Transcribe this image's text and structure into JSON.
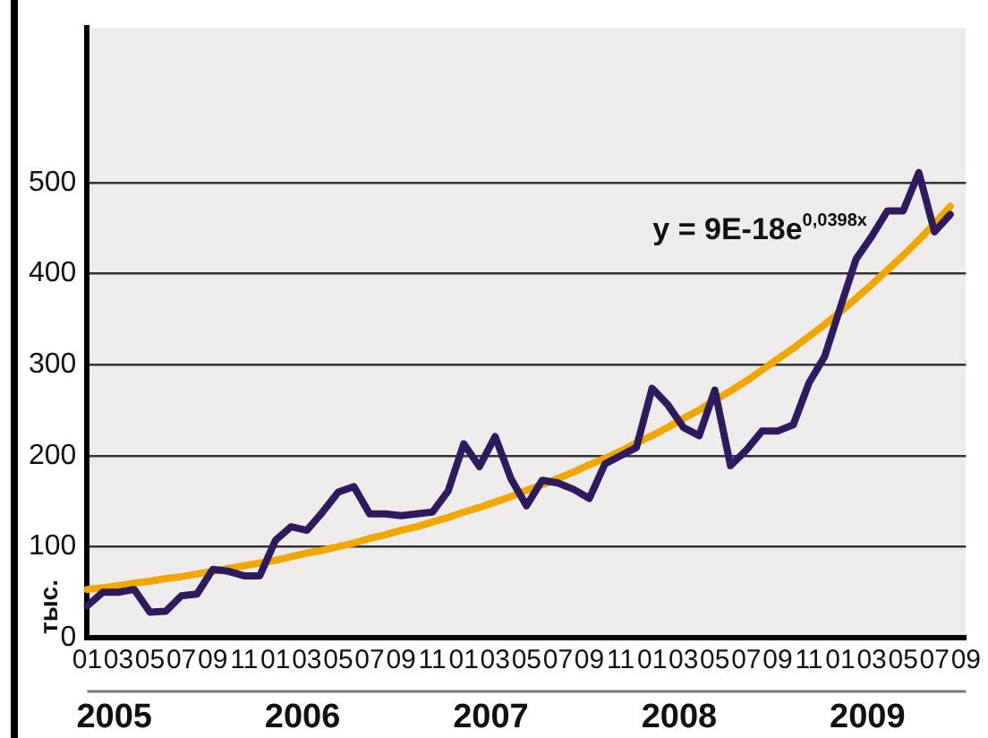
{
  "chart_data": {
    "type": "line",
    "ylabel": "тыс.",
    "categories": [
      "01",
      null,
      "03",
      null,
      "05",
      null,
      "07",
      null,
      "09",
      null,
      "11",
      null,
      "01",
      null,
      "03",
      null,
      "05",
      null,
      "07",
      null,
      "09",
      null,
      "11",
      null,
      "01",
      null,
      "03",
      null,
      "05",
      null,
      "07",
      null,
      "09",
      null,
      "11",
      null,
      "01",
      null,
      "03",
      null,
      "05",
      null,
      "07",
      null,
      "09",
      null,
      "11",
      null,
      "01",
      null,
      "03",
      null,
      "05",
      null,
      "07",
      null,
      "09"
    ],
    "series": [
      {
        "color": "#2e1a5e",
        "values": [
          35,
          50,
          50,
          53,
          28,
          29,
          46,
          48,
          75,
          73,
          68,
          68,
          107,
          122,
          118,
          138,
          160,
          166,
          136,
          136,
          134,
          136,
          138,
          161,
          213,
          188,
          221,
          175,
          145,
          173,
          170,
          163,
          153,
          191,
          200,
          209,
          274,
          256,
          231,
          222,
          272,
          189,
          206,
          227,
          227,
          234,
          280,
          309,
          363,
          416,
          441,
          469,
          469,
          511,
          446,
          465,
          null
        ]
      },
      {
        "color": "#f0a800",
        "values": [
          53,
          55,
          57,
          60,
          62,
          65,
          67,
          70,
          73,
          76,
          79,
          82,
          85,
          89,
          93,
          96,
          100,
          104,
          109,
          113,
          118,
          122,
          127,
          132,
          138,
          143,
          149,
          155,
          162,
          168,
          175,
          182,
          190,
          197,
          205,
          214,
          222,
          231,
          241,
          250,
          261,
          271,
          282,
          294,
          306,
          318,
          331,
          344,
          358,
          373,
          388,
          404,
          420,
          437,
          455,
          474,
          null
        ]
      }
    ],
    "ylim": [
      0,
      670
    ],
    "yticks": [
      0,
      100,
      200,
      300,
      400,
      500
    ],
    "grid": "y",
    "legend": false,
    "marker": "none",
    "line_style": "solid",
    "annotations": [
      "y = 9E-18e$^{0,0398x}$",
      "2005",
      "2006",
      "2007",
      "2008",
      "2009"
    ]
  }
}
